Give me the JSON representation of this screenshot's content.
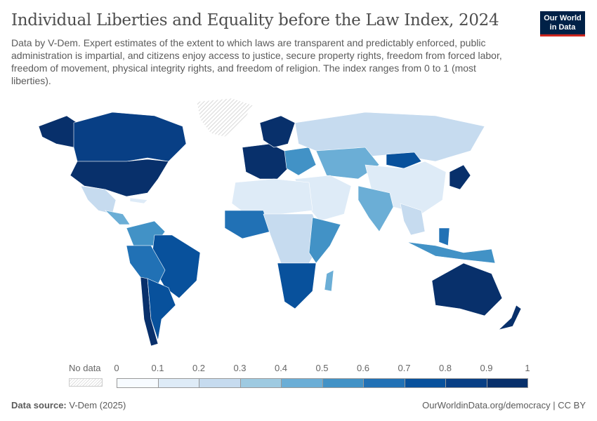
{
  "header": {
    "title": "Individual Liberties and Equality before the Law Index, 2024",
    "subtitle": "Data by V-Dem. Expert estimates of the extent to which laws are transparent and predictably enforced, public administration is impartial, and citizens enjoy access to justice, secure property rights, freedom from forced labor, freedom of movement, physical integrity rights, and freedom of religion. The index ranges from 0 to 1 (most liberties).",
    "logo": [
      "Our World",
      "in Data"
    ]
  },
  "legend": {
    "no_data_label": "No data",
    "ticks": [
      "0",
      "0.1",
      "0.2",
      "0.3",
      "0.4",
      "0.5",
      "0.6",
      "0.7",
      "0.8",
      "0.9",
      "1"
    ],
    "colors": [
      "#f7fbff",
      "#deebf7",
      "#c6dbef",
      "#9ecae1",
      "#6baed6",
      "#4292c6",
      "#2171b5",
      "#08519c",
      "#083f85",
      "#08306b"
    ]
  },
  "footer": {
    "source_label": "Data source:",
    "source": "V-Dem (2025)",
    "url": "OurWorldinData.org/democracy | CC BY"
  }
}
